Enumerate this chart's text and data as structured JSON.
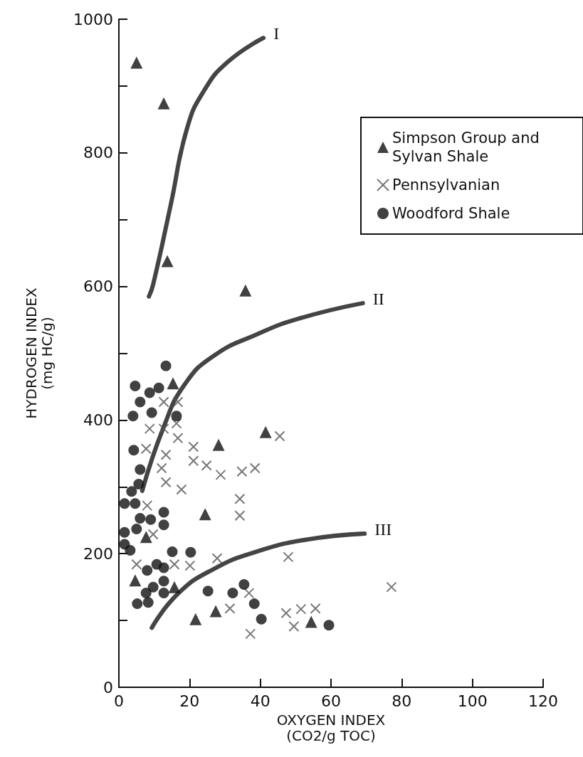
{
  "chart_data": {
    "type": "scatter",
    "xlabel": "OXYGEN INDEX\n(CO2/g TOC)",
    "ylabel": "HYDROGEN INDEX\n(mg HC/g)",
    "xlim": [
      0,
      120
    ],
    "xticks": [
      0,
      20,
      40,
      60,
      80,
      100,
      120
    ],
    "ylim": [
      0,
      1000
    ],
    "yticks": [
      0,
      {
        "value": 100,
        "label": null
      },
      200,
      {
        "value": 300,
        "label": null
      },
      400,
      {
        "value": 500,
        "label": null
      },
      600,
      {
        "value": 700,
        "label": null
      },
      800,
      {
        "value": 900,
        "label": null
      },
      1000
    ],
    "grid": false,
    "legend": "top right",
    "series": [
      {
        "name": "Simpson Group and Sylvan Shale",
        "color": "#111111",
        "marker": "triangle",
        "x": [
          5,
          12.7,
          13.7,
          35.8,
          15.3,
          28.2,
          41.5,
          24.4,
          7.7,
          4.6,
          15.7,
          21.7,
          27.4,
          54.4
        ],
        "values": [
          935,
          874,
          638,
          594,
          455,
          363,
          382,
          259,
          225,
          160,
          150,
          102,
          114,
          98
        ]
      },
      {
        "name": "Pennsylvanian",
        "color": "#555555",
        "marker": "cross",
        "x": [
          12.7,
          16.7,
          8.7,
          12.7,
          16.3,
          16.7,
          7.7,
          13.3,
          21.1,
          21.1,
          24.8,
          12.1,
          13.3,
          17.7,
          45.5,
          28.8,
          34.8,
          38.5,
          34.2,
          34.2,
          8,
          9.7,
          5,
          15.7,
          20.1,
          27.8,
          47.9,
          36.8,
          31.4,
          37.2,
          47.3,
          51.5,
          55.6,
          49.5,
          77.1
        ],
        "values": [
          427,
          427,
          387,
          387,
          395,
          373,
          357,
          348,
          360,
          339,
          332,
          328,
          307,
          296,
          376,
          318,
          323,
          328,
          282,
          257,
          272,
          229,
          184,
          184,
          182,
          193,
          195,
          141,
          118,
          80,
          111,
          117,
          118,
          91,
          150
        ]
      },
      {
        "name": "Woodford Shale",
        "color": "#111111",
        "marker": "circle",
        "x": [
          13.3,
          4.6,
          11.3,
          8.7,
          6,
          4,
          9.3,
          16.3,
          4.2,
          6,
          5.6,
          3.6,
          1.6,
          4.6,
          12.7,
          6,
          9,
          12.7,
          1.6,
          5,
          1.6,
          3.2,
          15.1,
          20.3,
          8,
          10.7,
          12.7,
          12.7,
          9.7,
          7.7,
          12.7,
          5.2,
          8.3,
          25.2,
          32.2,
          35.4,
          38.3,
          40.3,
          59.4
        ],
        "values": [
          481,
          451,
          448,
          441,
          427,
          406,
          411,
          406,
          355,
          326,
          304,
          293,
          275,
          275,
          262,
          253,
          251,
          243,
          232,
          237,
          214,
          205,
          203,
          202,
          175,
          184,
          179,
          159,
          150,
          141,
          141,
          125,
          127,
          144,
          141,
          154,
          125,
          102,
          93
        ]
      },
      {
        "type": "line",
        "color": "#444444",
        "x": [
          8.5,
          9.7,
          14.7,
          19.3,
          24.2,
          30.8,
          40.9
        ],
        "values": [
          585,
          603,
          723,
          837,
          894,
          936,
          972
        ]
      },
      {
        "type": "line",
        "color": "#444444",
        "x": [
          6.6,
          12.7,
          18.7,
          26.8,
          38.9,
          51,
          69
        ],
        "values": [
          294,
          390,
          454,
          496,
          528,
          552,
          575
        ]
      },
      {
        "type": "line",
        "color": "#444444",
        "x": [
          9.3,
          16.7,
          26.8,
          38.9,
          53,
          69.5
        ],
        "values": [
          89,
          140,
          177,
          203,
          221,
          230
        ]
      }
    ],
    "annotations": [
      "I",
      "II",
      "III"
    ]
  }
}
